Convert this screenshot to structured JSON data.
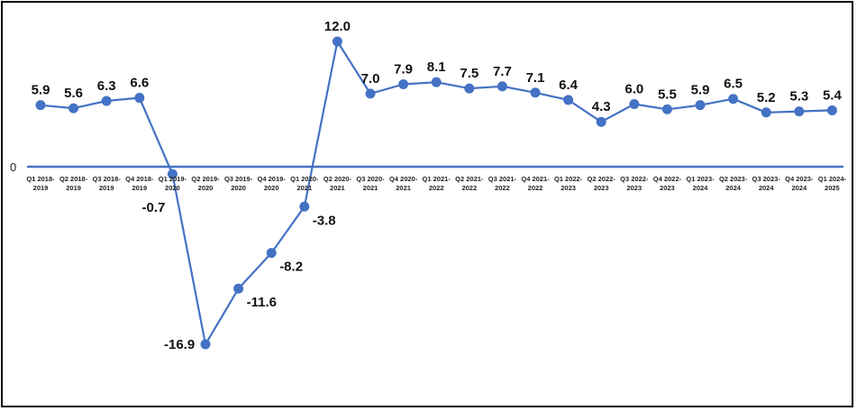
{
  "chart_data": {
    "type": "line",
    "title": "",
    "xlabel": "",
    "ylabel": "",
    "ylim": [
      -16.9,
      12.0
    ],
    "y_tick_labels": [
      "0"
    ],
    "grid": false,
    "legend": "none",
    "line_color": "#4472C4",
    "axis_color": "#4472C4",
    "categories": [
      [
        "Q1 2018-",
        "2019"
      ],
      [
        "Q2 2018-",
        "2019"
      ],
      [
        "Q3 2018-",
        "2019"
      ],
      [
        "Q4 2018-",
        "2019"
      ],
      [
        "Q1 2019-",
        "2020"
      ],
      [
        "Q2 2019-",
        "2020"
      ],
      [
        "Q3 2019-",
        "2020"
      ],
      [
        "Q4 2019-",
        "2020"
      ],
      [
        "Q1 2020-",
        "2021"
      ],
      [
        "Q2 2020-",
        "2021"
      ],
      [
        "Q3 2020-",
        "2021"
      ],
      [
        "Q4 2020-",
        "2021"
      ],
      [
        "Q1 2021-",
        "2022"
      ],
      [
        "Q2 2021-",
        "2022"
      ],
      [
        "Q3 2021-",
        "2022"
      ],
      [
        "Q4 2021-",
        "2022"
      ],
      [
        "Q1 2022-",
        "2023"
      ],
      [
        "Q2 2022-",
        "2023"
      ],
      [
        "Q3 2022-",
        "2023"
      ],
      [
        "Q4 2022-",
        "2023"
      ],
      [
        "Q1 2023-",
        "2024"
      ],
      [
        "Q2 2023-",
        "2024"
      ],
      [
        "Q3 2023-",
        "2024"
      ],
      [
        "Q4 2023-",
        "2024"
      ],
      [
        "Q1 2024-",
        "2025"
      ]
    ],
    "values": [
      5.9,
      5.6,
      6.3,
      6.6,
      -0.7,
      -16.9,
      -11.6,
      -8.2,
      -3.8,
      12.0,
      7.0,
      7.9,
      8.1,
      7.5,
      7.7,
      7.1,
      6.4,
      4.3,
      6.0,
      5.5,
      5.9,
      6.5,
      5.2,
      5.3,
      5.4
    ],
    "data_labels": [
      "5.9",
      "5.6",
      "6.3",
      "6.6",
      "-0.7",
      "-16.9",
      "-11.6",
      "-8.2",
      "-3.8",
      "12.0",
      "7.0",
      "7.9",
      "8.1",
      "7.5",
      "7.7",
      "7.1",
      "6.4",
      "4.3",
      "6.0",
      "5.5",
      "5.9",
      "6.5",
      "5.2",
      "5.3",
      "5.4"
    ]
  }
}
